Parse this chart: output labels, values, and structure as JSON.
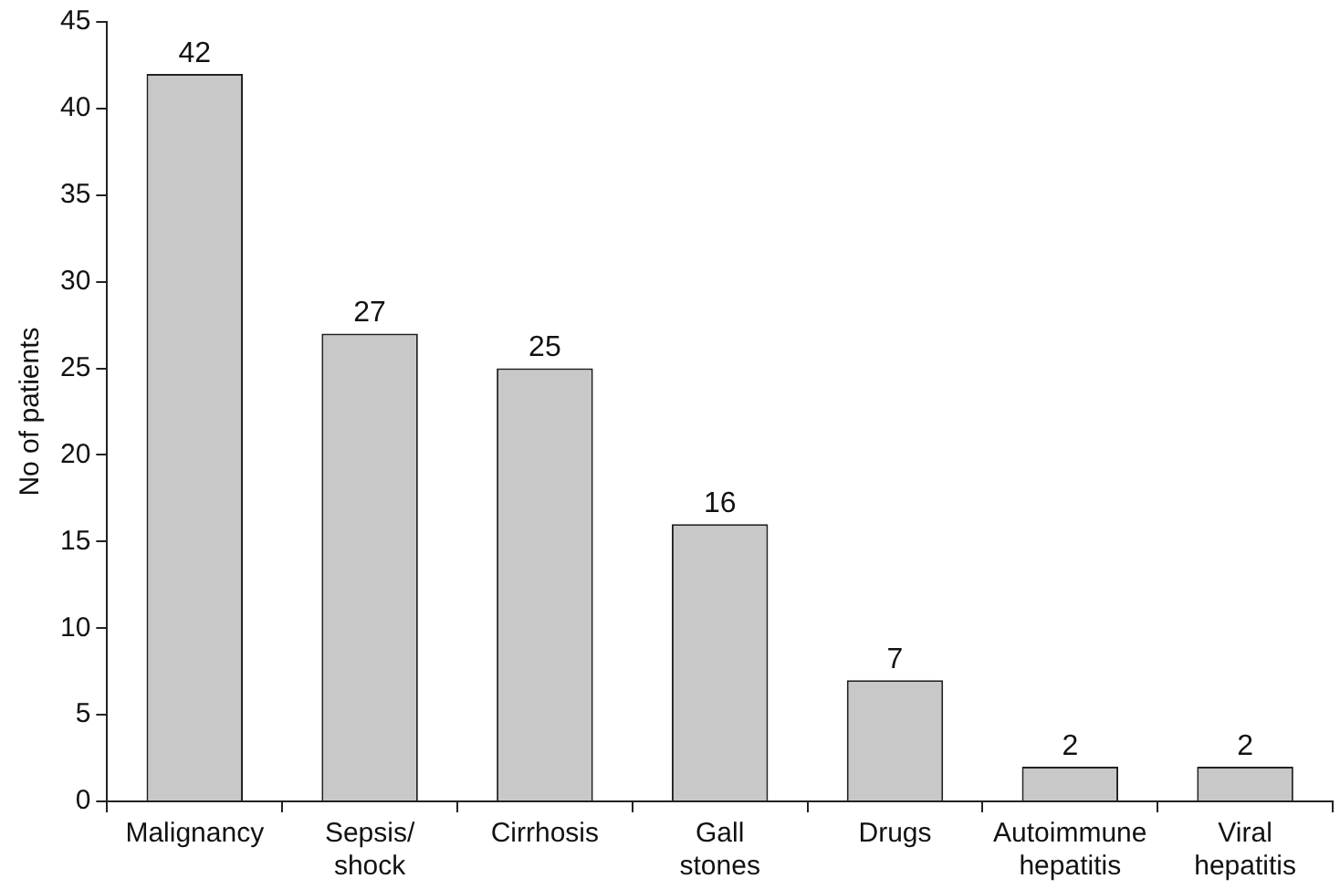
{
  "chart_data": {
    "type": "bar",
    "ylabel": "No of patients",
    "categories": [
      "Malignancy",
      "Sepsis/ shock",
      "Cirrhosis",
      "Gall stones",
      "Drugs",
      "Autoimmune hepatitis",
      "Viral hepatitis"
    ],
    "values": [
      42,
      27,
      25,
      16,
      7,
      2,
      2
    ],
    "color": "#c8c8c8",
    "ylim": [
      0,
      45
    ],
    "yticks": [
      0,
      5,
      10,
      15,
      20,
      25,
      30,
      35,
      40,
      45
    ],
    "grid": false,
    "data_labels": true
  }
}
